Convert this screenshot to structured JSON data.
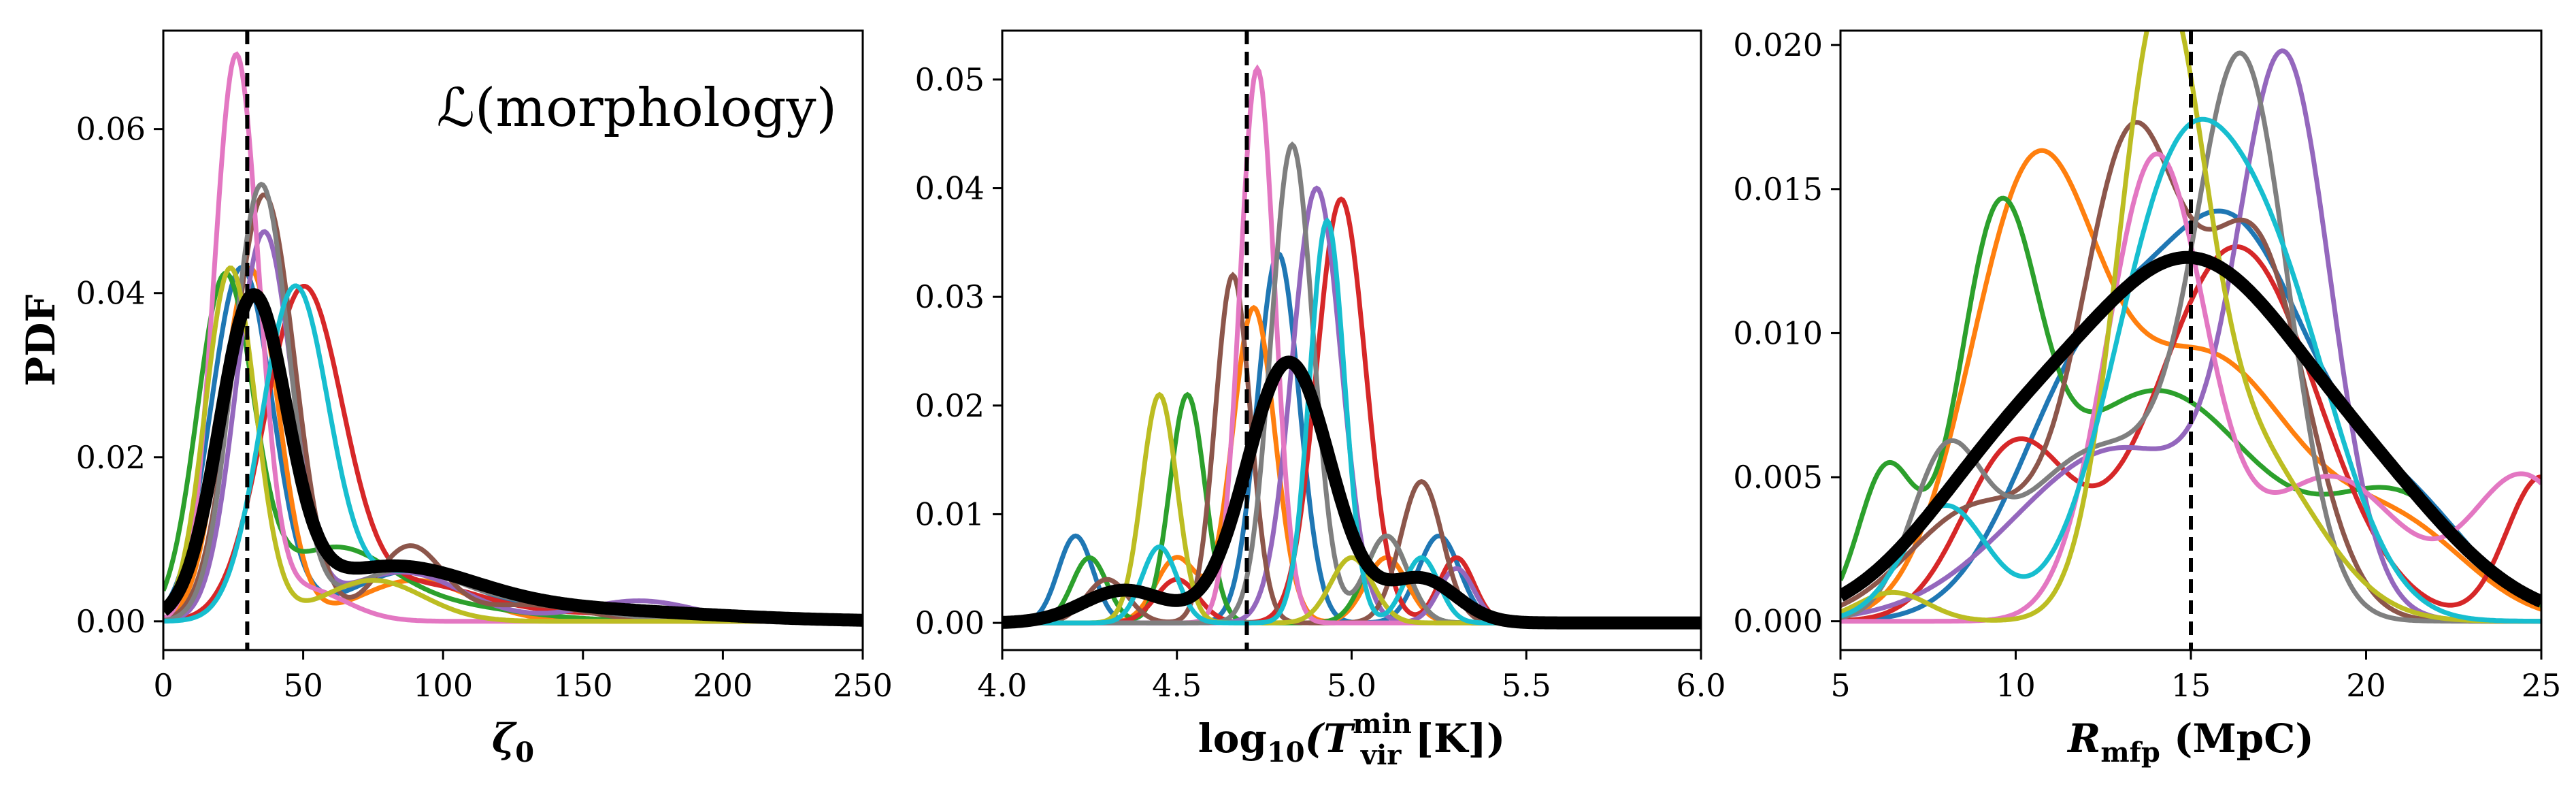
{
  "figure": {
    "ylabel": "PDF",
    "annotation": "ℒ(morphology)"
  },
  "colors": {
    "series": [
      "#1f77b4",
      "#ff7f0e",
      "#2ca02c",
      "#d62728",
      "#9467bd",
      "#8c564b",
      "#e377c2",
      "#7f7f7f",
      "#bcbd22",
      "#17becf"
    ],
    "mean": "#000000",
    "reference": "#000000"
  },
  "chart_data": [
    {
      "type": "line",
      "xlabel": {
        "base": "ζ",
        "sub": "0"
      },
      "ylabel": "PDF",
      "xlim": [
        0,
        250
      ],
      "ylim": [
        -0.0035,
        0.072
      ],
      "xticks": [
        0,
        50,
        100,
        150,
        200,
        250
      ],
      "yticks": [
        0.0,
        0.02,
        0.04,
        0.06
      ],
      "xtick_labels": [
        "0",
        "50",
        "100",
        "150",
        "200",
        "250"
      ],
      "ytick_labels": [
        "0.00",
        "0.02",
        "0.04",
        "0.06"
      ],
      "reference_x": 30,
      "series": [
        {
          "peaks": [
            [
              28,
              0.043,
              11
            ],
            [
              88,
              0.006,
              22
            ],
            [
              150,
              0.0015,
              30
            ]
          ]
        },
        {
          "peaks": [
            [
              31,
              0.043,
              10
            ],
            [
              90,
              0.005,
              20
            ]
          ]
        },
        {
          "peaks": [
            [
              22,
              0.041,
              10
            ],
            [
              60,
              0.008,
              20
            ],
            [
              95,
              0.002,
              30
            ]
          ]
        },
        {
          "peaks": [
            [
              50,
              0.04,
              14
            ],
            [
              90,
              0.004,
              22
            ],
            [
              140,
              0.001,
              40
            ]
          ]
        },
        {
          "peaks": [
            [
              36,
              0.047,
              10
            ],
            [
              85,
              0.006,
              22
            ],
            [
              170,
              0.0025,
              20
            ]
          ]
        },
        {
          "peaks": [
            [
              36,
              0.052,
              11
            ],
            [
              88,
              0.009,
              12
            ],
            [
              130,
              0.002,
              20
            ]
          ]
        },
        {
          "peaks": [
            [
              26,
              0.068,
              8
            ],
            [
              50,
              0.004,
              15
            ]
          ]
        },
        {
          "peaks": [
            [
              35,
              0.053,
              10
            ],
            [
              85,
              0.006,
              20
            ],
            [
              130,
              0.002,
              25
            ]
          ]
        },
        {
          "peaks": [
            [
              24,
              0.043,
              9
            ],
            [
              75,
              0.005,
              18
            ]
          ]
        },
        {
          "peaks": [
            [
              47,
              0.04,
              12
            ],
            [
              90,
              0.006,
              22
            ],
            [
              150,
              0.002,
              25
            ]
          ]
        }
      ],
      "mean": {
        "peaks": [
          [
            32,
            0.038,
            12
          ],
          [
            80,
            0.006,
            30
          ],
          [
            140,
            0.0015,
            50
          ]
        ]
      }
    },
    {
      "type": "line",
      "xlabel": {
        "pre": "log",
        "sub1": "10",
        "mid": "(T",
        "sup": "min",
        "sub2": "vir",
        "post": " [K])"
      },
      "xlim": [
        4.0,
        6.0
      ],
      "ylim": [
        -0.0025,
        0.0545
      ],
      "xticks": [
        4.0,
        4.5,
        5.0,
        5.5,
        6.0
      ],
      "yticks": [
        0.0,
        0.01,
        0.02,
        0.03,
        0.04,
        0.05
      ],
      "xtick_labels": [
        "4.0",
        "4.5",
        "5.0",
        "5.5",
        "6.0"
      ],
      "ytick_labels": [
        "0.00",
        "0.01",
        "0.02",
        "0.03",
        "0.04",
        "0.05"
      ],
      "reference_x": 4.7,
      "series": [
        {
          "peaks": [
            [
              4.21,
              0.008,
              0.05
            ],
            [
              4.79,
              0.034,
              0.06
            ],
            [
              5.25,
              0.008,
              0.06
            ]
          ]
        },
        {
          "peaks": [
            [
              4.72,
              0.029,
              0.06
            ],
            [
              4.5,
              0.006,
              0.06
            ],
            [
              5.1,
              0.006,
              0.06
            ]
          ]
        },
        {
          "peaks": [
            [
              4.25,
              0.006,
              0.05
            ],
            [
              4.53,
              0.021,
              0.05
            ],
            [
              5.1,
              0.008,
              0.06
            ]
          ]
        },
        {
          "peaks": [
            [
              4.5,
              0.004,
              0.06
            ],
            [
              4.97,
              0.039,
              0.07
            ],
            [
              5.3,
              0.006,
              0.05
            ]
          ]
        },
        {
          "peaks": [
            [
              4.9,
              0.04,
              0.07
            ],
            [
              5.3,
              0.005,
              0.05
            ]
          ]
        },
        {
          "peaks": [
            [
              4.3,
              0.004,
              0.06
            ],
            [
              4.66,
              0.032,
              0.05
            ],
            [
              5.2,
              0.013,
              0.06
            ]
          ]
        },
        {
          "peaks": [
            [
              4.73,
              0.051,
              0.05
            ]
          ]
        },
        {
          "peaks": [
            [
              4.83,
              0.044,
              0.06
            ],
            [
              5.1,
              0.008,
              0.06
            ]
          ]
        },
        {
          "peaks": [
            [
              4.45,
              0.021,
              0.05
            ],
            [
              5.0,
              0.006,
              0.06
            ]
          ]
        },
        {
          "peaks": [
            [
              4.93,
              0.037,
              0.05
            ],
            [
              4.45,
              0.007,
              0.05
            ],
            [
              5.2,
              0.006,
              0.05
            ]
          ]
        }
      ],
      "mean": {
        "peaks": [
          [
            4.82,
            0.024,
            0.12
          ],
          [
            4.35,
            0.003,
            0.12
          ],
          [
            5.2,
            0.004,
            0.1
          ]
        ]
      }
    },
    {
      "type": "line",
      "xlabel": {
        "base": "R",
        "sub": "mfp",
        "post": " (MpC)"
      },
      "xlim": [
        5,
        25
      ],
      "ylim": [
        -0.001,
        0.0205
      ],
      "xticks": [
        5,
        10,
        15,
        20,
        25
      ],
      "yticks": [
        0.0,
        0.005,
        0.01,
        0.015,
        0.02
      ],
      "xtick_labels": [
        "5",
        "10",
        "15",
        "20",
        "25"
      ],
      "ytick_labels": [
        "0.000",
        "0.005",
        "0.010",
        "0.015",
        "0.020"
      ],
      "reference_x": 15,
      "series": [
        {
          "peaks": [
            [
              12,
              0.008,
              2
            ],
            [
              16.2,
              0.013,
              2.2
            ],
            [
              21,
              0.004,
              2
            ]
          ]
        },
        {
          "peaks": [
            [
              10.5,
              0.015,
              1.8
            ],
            [
              15.5,
              0.009,
              2.5
            ],
            [
              21,
              0.003,
              2
            ]
          ]
        },
        {
          "peaks": [
            [
              6.3,
              0.005,
              0.8
            ],
            [
              9.5,
              0.012,
              1.1
            ],
            [
              14,
              0.008,
              3
            ],
            [
              21,
              0.004,
              2
            ]
          ]
        },
        {
          "peaks": [
            [
              10,
              0.006,
              1.5
            ],
            [
              16.3,
              0.013,
              2.3
            ],
            [
              25,
              0.005,
              1
            ]
          ]
        },
        {
          "peaks": [
            [
              17.7,
              0.018,
              1.3
            ],
            [
              13,
              0.006,
              3
            ]
          ]
        },
        {
          "peaks": [
            [
              13.3,
              0.016,
              1.4
            ],
            [
              16.8,
              0.013,
              1.5
            ],
            [
              9,
              0.004,
              2
            ]
          ]
        },
        {
          "peaks": [
            [
              14,
              0.016,
              1.4
            ],
            [
              19,
              0.005,
              2
            ],
            [
              24.5,
              0.005,
              1.5
            ]
          ]
        },
        {
          "peaks": [
            [
              16.5,
              0.018,
              1.3
            ],
            [
              12.5,
              0.006,
              2.5
            ],
            [
              8,
              0.005,
              1
            ]
          ]
        },
        {
          "peaks": [
            [
              14.1,
              0.019,
              1.2
            ],
            [
              16.5,
              0.006,
              2
            ],
            [
              6.5,
              0.001,
              1
            ]
          ]
        },
        {
          "peaks": [
            [
              14.5,
              0.014,
              1.8
            ],
            [
              17.5,
              0.01,
              1.8
            ],
            [
              8,
              0.004,
              1.2
            ]
          ]
        }
      ],
      "mean": {
        "peaks": [
          [
            15,
            0.012,
            3.2
          ],
          [
            9.5,
            0.004,
            2.5
          ],
          [
            20.5,
            0.003,
            2.5
          ]
        ]
      }
    }
  ]
}
